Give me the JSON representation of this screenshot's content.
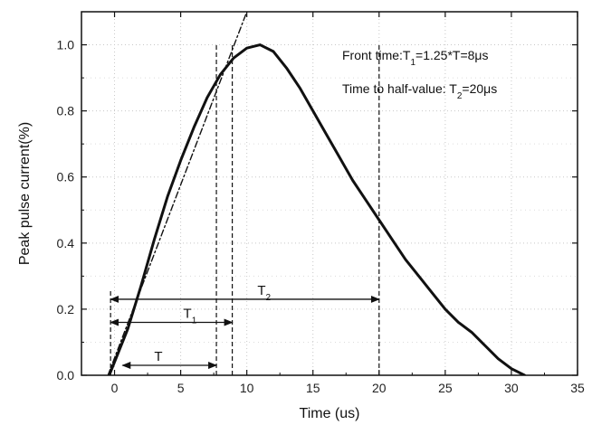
{
  "chart_data": {
    "type": "line",
    "xlabel": "Time (us)",
    "ylabel": "Peak pulse current(%)",
    "xlim": [
      -2.5,
      35
    ],
    "ylim": [
      0,
      1.1
    ],
    "grid": true,
    "x_ticks": [
      "0",
      "5",
      "10",
      "15",
      "20",
      "25",
      "30",
      "35"
    ],
    "y_ticks": [
      "0.0",
      "0.2",
      "0.4",
      "0.6",
      "0.8",
      "1.0"
    ],
    "series": [
      {
        "style": "solid",
        "x": [
          -0.4,
          0.5,
          1,
          2,
          3,
          4,
          5,
          6,
          7,
          8,
          9,
          10,
          11,
          12,
          13,
          14,
          15,
          16,
          17,
          18,
          19,
          20,
          21,
          22,
          23,
          24,
          25,
          26,
          27,
          28,
          29,
          30,
          31
        ],
        "y": [
          0.0,
          0.09,
          0.14,
          0.27,
          0.41,
          0.54,
          0.65,
          0.75,
          0.84,
          0.91,
          0.96,
          0.99,
          1.0,
          0.98,
          0.93,
          0.87,
          0.8,
          0.73,
          0.66,
          0.59,
          0.53,
          0.47,
          0.41,
          0.35,
          0.3,
          0.25,
          0.2,
          0.16,
          0.13,
          0.09,
          0.05,
          0.02,
          0.0
        ]
      },
      {
        "style": "dash-dot",
        "x": [
          -0.5,
          10
        ],
        "y": [
          0.0,
          1.1
        ]
      }
    ],
    "vlines": [
      {
        "x": -0.3,
        "y0": 0.0,
        "y1": 0.26
      },
      {
        "x": 7.7,
        "y0": 0.0,
        "y1": 1.0
      },
      {
        "x": 8.9,
        "y0": 0.0,
        "y1": 1.0
      },
      {
        "x": 20,
        "y0": 0.0,
        "y1": 1.0
      }
    ],
    "arrows": [
      {
        "label": "T",
        "x0": 0.6,
        "x1": 7.7,
        "y": 0.03,
        "label_x": 3.0
      },
      {
        "label": "T",
        "sub": "1",
        "x0": -0.3,
        "x1": 8.9,
        "y": 0.16,
        "label_x": 5.2
      },
      {
        "label": "T",
        "sub": "2",
        "x0": -0.3,
        "x1": 20,
        "y": 0.23,
        "label_x": 10.8
      }
    ],
    "annotations": {
      "front_time": {
        "pre": "Front time:T",
        "sub": "1",
        "post": "=1.25*T=8μs"
      },
      "half_value": {
        "pre": "Time to half-value: T",
        "sub": "2",
        "post": "=20μs"
      }
    }
  }
}
